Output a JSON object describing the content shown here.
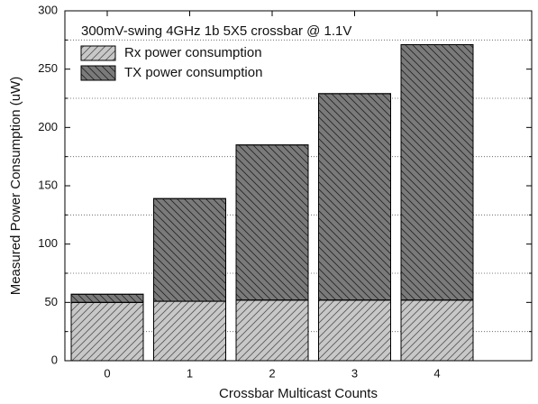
{
  "chart_data": {
    "type": "stacked_bar",
    "title": "300mV-swing 4GHz 1b 5X5 crossbar @ 1.1V",
    "x_label": "Crossbar Multicast Counts",
    "y_label": "Measured Power Consumption (uW)",
    "categories": [
      "0",
      "1",
      "2",
      "3",
      "4"
    ],
    "series": [
      {
        "name": "Rx power consumption",
        "color": "#c8c8c8",
        "hatch": "forward",
        "values": [
          50,
          51,
          52,
          52,
          52
        ]
      },
      {
        "name": "TX power consumption",
        "color": "#7a7a7a",
        "hatch": "backward",
        "values": [
          7,
          88,
          133,
          177,
          219
        ]
      }
    ],
    "ylim": [
      0,
      300
    ],
    "yticks": [
      0,
      50,
      100,
      150,
      200,
      250,
      300
    ],
    "minor_yticks": [
      25,
      75,
      125,
      175,
      225,
      275
    ],
    "grid": true,
    "legend": "upper left"
  }
}
